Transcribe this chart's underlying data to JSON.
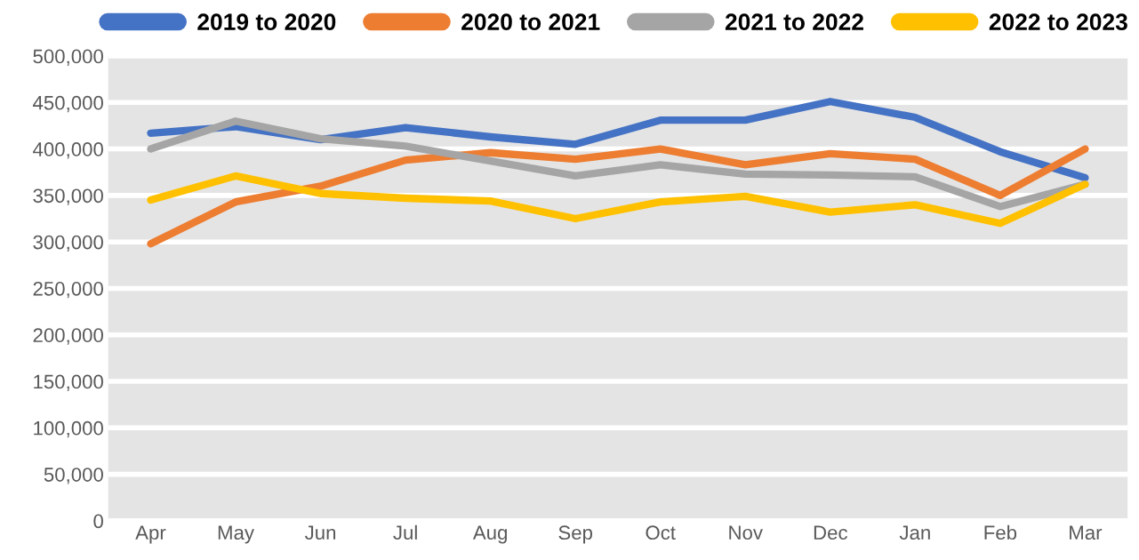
{
  "chart_data": {
    "type": "line",
    "categories": [
      "Apr",
      "May",
      "Jun",
      "Jul",
      "Aug",
      "Sep",
      "Oct",
      "Nov",
      "Dec",
      "Jan",
      "Feb",
      "Mar"
    ],
    "series": [
      {
        "name": "2019 to 2020",
        "color": "#4472c4",
        "values": [
          417000,
          424000,
          410000,
          423000,
          413000,
          405000,
          431000,
          431000,
          451000,
          434000,
          397000,
          369000
        ]
      },
      {
        "name": "2020 to 2021",
        "color": "#ed7d31",
        "values": [
          298000,
          343000,
          360000,
          388000,
          396000,
          389000,
          400000,
          383000,
          395000,
          389000,
          350000,
          400000
        ]
      },
      {
        "name": "2021 to 2022",
        "color": "#a5a5a5",
        "values": [
          400000,
          430000,
          411000,
          403000,
          387000,
          371000,
          383000,
          373000,
          372000,
          370000,
          338000,
          362000
        ]
      },
      {
        "name": "2022 to 2023",
        "color": "#ffc000",
        "values": [
          345000,
          371000,
          352000,
          347000,
          344000,
          325000,
          343000,
          349000,
          332000,
          340000,
          320000,
          362000
        ]
      }
    ],
    "ylim": [
      0,
      500000
    ],
    "yticks": [
      0,
      {
        "value": 50000,
        "label": "50,000"
      },
      {
        "value": 100000,
        "label": "100,000"
      },
      {
        "value": 150000,
        "label": "150,000"
      },
      {
        "value": 200000,
        "label": "200,000"
      },
      {
        "value": 250000,
        "label": "250,000"
      },
      {
        "value": 300000,
        "label": "300,000"
      },
      {
        "value": 350000,
        "label": "350,000"
      },
      {
        "value": 400000,
        "label": "400,000"
      },
      {
        "value": 450000,
        "label": "450,000"
      },
      {
        "value": 500000,
        "label": "500,000"
      }
    ],
    "grid": "y",
    "legend": "top",
    "marker": "none",
    "line_style": "solid"
  }
}
